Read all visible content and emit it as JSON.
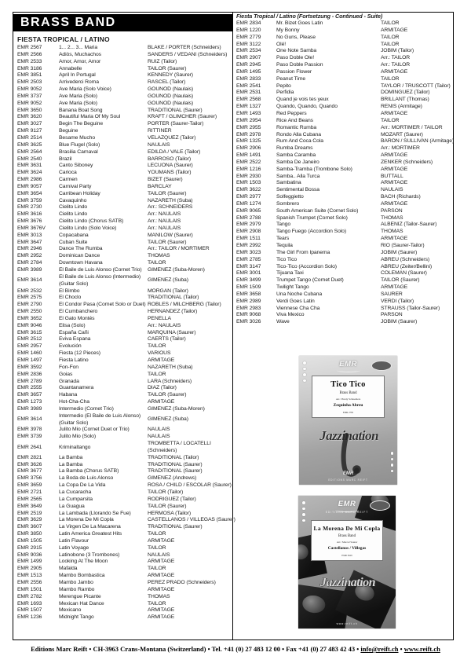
{
  "banner": "BRASS BAND",
  "section_title": "FIESTA TROPICAL / LATINO",
  "continued_heading": "Fiesta Tropical / Latino (Fortsetzung - Continued - Suite)",
  "catalog": {
    "left_rows": [
      {
        "emr": "EMR 2567",
        "title": "1... 2... 3... Maria",
        "composer": "BLAKE / PORTER (Schneiders)"
      },
      {
        "emr": "EMR 2566",
        "title": "Adiòs, Muchachos",
        "composer": "SANDERS / VEDANI (Schneiders)"
      },
      {
        "emr": "EMR 2533",
        "title": "Amor, Amor, Amor",
        "composer": "RUIZ (Tailor)"
      },
      {
        "emr": "EMR 3186",
        "title": "Annabelle",
        "composer": "TAILOR (Saurer)"
      },
      {
        "emr": "EMR 3851",
        "title": "April In Portugal",
        "composer": "KENNEDY (Saurer)"
      },
      {
        "emr": "EMR 2503",
        "title": "Arrivederci Roma",
        "composer": "RASCEL (Tailor)"
      },
      {
        "emr": "EMR 9052",
        "title": "Ave Maria (Solo Voice)",
        "composer": "GOUNOD (Naulais)"
      },
      {
        "emr": "EMR 3737",
        "title": "Ave Maria (Solo)",
        "composer": "GOUNOD (Naulais)"
      },
      {
        "emr": "EMR 9052",
        "title": "Ave Maria (Solo)",
        "composer": "GOUNOD (Naulais)"
      },
      {
        "emr": "EMR 3650",
        "title": "Banana Boat Song",
        "composer": "TRADITIONAL (Saurer)"
      },
      {
        "emr": "EMR 3620",
        "title": "Beautiful Maria Of My Soul",
        "composer": "KRAFT / GLIMCHER (Saurer)"
      },
      {
        "emr": "EMR 3027",
        "title": "Begin The Beguine",
        "composer": "PORTER (Saurer-Tailor)"
      },
      {
        "emr": "EMR 9127",
        "title": "Beguine",
        "composer": "RITTINER"
      },
      {
        "emr": "EMR 2514",
        "title": "Besame Mucho",
        "composer": "VELAZQUEZ (Tailor)"
      },
      {
        "emr": "EMR 3625",
        "title": "Blue Flugel (Solo)",
        "composer": "NAULAIS"
      },
      {
        "emr": "EMR 2564",
        "title": "Brasilia Carnaval",
        "composer": "EDILDA / VALE (Tailor)"
      },
      {
        "emr": "EMR 2540",
        "title": "Brazil",
        "composer": "BARROSO (Tailor)"
      },
      {
        "emr": "EMR 3631",
        "title": "Canto Siboney",
        "composer": "LECUONA (Saurer)"
      },
      {
        "emr": "EMR 3624",
        "title": "Carioca",
        "composer": "YOUMANS (Tailor)"
      },
      {
        "emr": "EMR 2986",
        "title": "Carmen",
        "composer": "BIZET (Saurer)"
      },
      {
        "emr": "EMR 9057",
        "title": "Carnival Party",
        "composer": "BARCLAY"
      },
      {
        "emr": "EMR 3654",
        "title": "Carribean Holiday",
        "composer": "TAILOR (Saurer)"
      },
      {
        "emr": "EMR 3759",
        "title": "Cavaquinho",
        "composer": "NAZARETH (Suba)"
      },
      {
        "emr": "EMR 2730",
        "title": "Cielito Lindo",
        "composer": "Arr.: SCHNEIDERS"
      },
      {
        "emr": "EMR 3616",
        "title": "Cielito Lindo",
        "composer": "Arr.: NAULAIS"
      },
      {
        "emr": "EMR 3676",
        "title": "Cielito Lindo (Chorus SATB)",
        "composer": "Arr.: NAULAIS"
      },
      {
        "emr": "EMR 3676V",
        "title": "Cielito Lindo (Solo Voice)",
        "composer": "Arr.: NAULAIS"
      },
      {
        "emr": "EMR 3013",
        "title": "Copacabana",
        "composer": "MANILOW (Saurer)"
      },
      {
        "emr": "EMR 3647",
        "title": "Cuban Suite",
        "composer": "TAILOR (Saurer)"
      },
      {
        "emr": "EMR 2946",
        "title": "Dance The Rumba",
        "composer": "Arr.: TAILOR / MORTIMER"
      },
      {
        "emr": "EMR 2952",
        "title": "Dominican Dance",
        "composer": "THOMAS"
      },
      {
        "emr": "EMR 2784",
        "title": "Downtown Havana",
        "composer": "TAILOR"
      },
      {
        "emr": "EMR 3989",
        "title": "El Baile de Luis Alonso (Cornet Trio)",
        "composer": "GIMENEZ (Suba-Moren)"
      },
      {
        "emr": "EMR 3614",
        "title": "El Baile de Luis Alonso (Intermedio)\n(Guitar Solo)",
        "composer": "GIMENEZ (Suba)"
      },
      {
        "emr": "EMR 2532",
        "title": "El Bimbo",
        "composer": "MORGAN (Tailor)"
      },
      {
        "emr": "EMR 2575",
        "title": "El Choclo",
        "composer": "TRADITIONAL (Tailor)"
      },
      {
        "emr": "EMR 2790",
        "title": "El Condor Pasa (Cornet Solo or Duet)",
        "composer": "ROBLES / MILCHBERG (Tailor)"
      },
      {
        "emr": "EMR 2550",
        "title": "El Cumbanchero",
        "composer": "HERNANDEZ (Tailor)"
      },
      {
        "emr": "EMR 3652",
        "title": "El Gato Montés",
        "composer": "PENELLA"
      },
      {
        "emr": "EMR 9046",
        "title": "Elisa (Solo)",
        "composer": "Arr.: NAULAIS"
      },
      {
        "emr": "EMR 3615",
        "title": "España Cañi",
        "composer": "MARQUINA (Saurer)"
      },
      {
        "emr": "EMR 2512",
        "title": "Eviva Espana",
        "composer": "CAERTS (Tailor)"
      },
      {
        "emr": "EMR 2957",
        "title": "Evolución",
        "composer": "TAILOR"
      },
      {
        "emr": "EMR 1460",
        "title": "Fiesta (12 Pieces)",
        "composer": "VARIOUS"
      },
      {
        "emr": "EMR 1497",
        "title": "Fiesta Latino",
        "composer": "ARMITAGE"
      },
      {
        "emr": "EMR 3592",
        "title": "Fon-Fon",
        "composer": "NAZARETH (Suba)"
      },
      {
        "emr": "EMR 2836",
        "title": "Goias",
        "composer": "TAILOR"
      },
      {
        "emr": "EMR 2789",
        "title": "Granada",
        "composer": "LARA (Schneiders)"
      },
      {
        "emr": "EMR 2555",
        "title": "Guantanamera",
        "composer": "DIAZ (Tailor)"
      },
      {
        "emr": "EMR 3657",
        "title": "Habana",
        "composer": "TAILOR (Saurer)"
      },
      {
        "emr": "EMR 1273",
        "title": "Hot-Cha-Cha",
        "composer": "ARMITAGE"
      },
      {
        "emr": "EMR 3989",
        "title": "Intermedio (Cornet Trio)",
        "composer": "GIMENEZ (Suba-Moren)"
      },
      {
        "emr": "EMR 3614",
        "title": "Intermedio (El Baile de Luis Alonso)\n(Guitar Solo)",
        "composer": "GIMENEZ (Suba)"
      },
      {
        "emr": "EMR 3978",
        "title": "Julito Mio (Cornet Duet or Trio)",
        "composer": "NAULAIS"
      },
      {
        "emr": "EMR 3739",
        "title": "Julito Mio (Solo)",
        "composer": "NAULAIS"
      },
      {
        "emr": "EMR 2641",
        "title": "Kriminaltango",
        "composer": "TROMBETTA / LOCATELLI\n(Schneiders)"
      },
      {
        "emr": "EMR 2821",
        "title": "La Bamba",
        "composer": "TRADITIONAL (Tailor)"
      },
      {
        "emr": "EMR 3626",
        "title": "La Bamba",
        "composer": "TRADITIONAL (Saurer)"
      },
      {
        "emr": "EMR 3677",
        "title": "La Bamba (Chorus SATB)",
        "composer": "TRADITIONAL (Saurer)"
      },
      {
        "emr": "EMR 3756",
        "title": "La Boda de Luis Alonso",
        "composer": "GIMENEZ (Andrews)"
      },
      {
        "emr": "EMR 3659",
        "title": "La Copa De La Vida",
        "composer": "ROSA / CHILD / ESCOLAR (Saurer)"
      },
      {
        "emr": "EMR 2721",
        "title": "La Cucaracha",
        "composer": "TAILOR (Tailor)"
      },
      {
        "emr": "EMR 2565",
        "title": "La Cumparsita",
        "composer": "RODRIGUEZ (Tailor)"
      },
      {
        "emr": "EMR 3649",
        "title": "La Guagua",
        "composer": "TAILOR (Saurer)"
      },
      {
        "emr": "EMR 2519",
        "title": "La Lambada (Llorando Se Fue)",
        "composer": "HERMOSA (Tailor)"
      },
      {
        "emr": "EMR 3629",
        "title": "La Morena De Mi Copla",
        "composer": "CASTELLANOS / VILLEGAS (Saurer)"
      },
      {
        "emr": "EMR 3607",
        "title": "La Virgen De La Macarena",
        "composer": "TRADITIONAL (Saurer)"
      },
      {
        "emr": "EMR 3850",
        "title": "Latin America Greatest Hits",
        "composer": "TAILOR"
      },
      {
        "emr": "EMR 1505",
        "title": "Latin Flavour",
        "composer": "ARMITAGE"
      },
      {
        "emr": "EMR 2915",
        "title": "Latin Voyage",
        "composer": "TAILOR"
      },
      {
        "emr": "EMR 9036",
        "title": "Latinobone (3 Trombones)",
        "composer": "NAULAIS"
      },
      {
        "emr": "EMR 1499",
        "title": "Looking At The Moon",
        "composer": "ARMITAGE"
      },
      {
        "emr": "EMR 2905",
        "title": "Mafalda",
        "composer": "TAILOR"
      },
      {
        "emr": "EMR 1513",
        "title": "Mambo Bombastica",
        "composer": "ARMITAGE"
      },
      {
        "emr": "EMR 2556",
        "title": "Mambo Jambo",
        "composer": "PEREZ PRADO (Schneiders)"
      },
      {
        "emr": "EMR 1501",
        "title": "Mambo Rambo",
        "composer": "ARMITAGE"
      },
      {
        "emr": "EMR 2782",
        "title": "Merengue Picante",
        "composer": "THOMAS"
      },
      {
        "emr": "EMR 1693",
        "title": "Mexican Hat Dance",
        "composer": "TAILOR"
      },
      {
        "emr": "EMR 1507",
        "title": "Mexicano",
        "composer": "ARMITAGE"
      },
      {
        "emr": "EMR 1236",
        "title": "Midnight Tango",
        "composer": "ARMITAGE"
      }
    ],
    "right_rows": [
      {
        "emr": "EMR 2834",
        "title": "Mr. Bizet Goes Latin",
        "composer": "TAILOR"
      },
      {
        "emr": "EMR 1220",
        "title": "My Bonny",
        "composer": "ARMITAGE"
      },
      {
        "emr": "EMR 2779",
        "title": "No Guns, Please",
        "composer": "TAILOR"
      },
      {
        "emr": "EMR 3122",
        "title": "Olé!",
        "composer": "TAILOR"
      },
      {
        "emr": "EMR 2534",
        "title": "One Note Samba",
        "composer": "JOBIM (Tailor)"
      },
      {
        "emr": "EMR 2907",
        "title": "Paso Doble Ole!",
        "composer": "Arr.: TAILOR"
      },
      {
        "emr": "EMR 2945",
        "title": "Paso Doble Passion",
        "composer": "Arr.: TAILOR"
      },
      {
        "emr": "EMR 1495",
        "title": "Passion Flower",
        "composer": "ARMITAGE"
      },
      {
        "emr": "EMR 2833",
        "title": "Peanut Time",
        "composer": "TAILOR"
      },
      {
        "emr": "EMR 2541",
        "title": "Pepito",
        "composer": "TAYLOR / TRUSCOTT (Tailor)"
      },
      {
        "emr": "EMR 2531",
        "title": "Perfidia",
        "composer": "DOMINGUEZ (Tailor)"
      },
      {
        "emr": "EMR 2568",
        "title": "Quand je vois tes yeux",
        "composer": "BRILLANT (Thomas)"
      },
      {
        "emr": "EMR 1327",
        "title": "Quando, Quando, Quando",
        "composer": "RENIS (Armitage)"
      },
      {
        "emr": "EMR 1493",
        "title": "Red Peppers",
        "composer": "ARMITAGE"
      },
      {
        "emr": "EMR 2954",
        "title": "Rice And Beans",
        "composer": "TAILOR"
      },
      {
        "emr": "EMR 2955",
        "title": "Romantic Rumba",
        "composer": "Arr.: MORTIMER / TAILOR"
      },
      {
        "emr": "EMR 2978",
        "title": "Rondo Alla Cubana",
        "composer": "MOZART (Saurer)"
      },
      {
        "emr": "EMR 1325",
        "title": "Rum And Coca Cola",
        "composer": "BARON / SULLIVAN (Armitage)"
      },
      {
        "emr": "EMR 2906",
        "title": "Rumba Dreams",
        "composer": "Arr.: MORTIMER"
      },
      {
        "emr": "EMR 1491",
        "title": "Samba Caramba",
        "composer": "ARMITAGE"
      },
      {
        "emr": "EMR 2522",
        "title": "Samba De Janeiro",
        "composer": "ZENKER (Schneiders)"
      },
      {
        "emr": "EMR 1216",
        "title": "Samba-Tramba (Trombone Solo)",
        "composer": "ARMITAGE"
      },
      {
        "emr": "EMR 2930",
        "title": "Samba.. Alla Turca",
        "composer": "BUTTALL"
      },
      {
        "emr": "EMR 1503",
        "title": "Sambatina",
        "composer": "ARMITAGE"
      },
      {
        "emr": "EMR 3622",
        "title": "Sentimental Bossa",
        "composer": "NAULAIS"
      },
      {
        "emr": "EMR 2977",
        "title": "Solfeggietto",
        "composer": "BACH (Richards)"
      },
      {
        "emr": "EMR 1274",
        "title": "Sombrero",
        "composer": "ARMITAGE"
      },
      {
        "emr": "EMR 9065",
        "title": "South American Suite (Cornet Solo)",
        "composer": "PARSON"
      },
      {
        "emr": "EMR 2788",
        "title": "Spanish Trumpet (Cornet Solo)",
        "composer": "THOMAS"
      },
      {
        "emr": "EMR 2979",
        "title": "Tango",
        "composer": "ALBENIZ (Tailor-Saurer)"
      },
      {
        "emr": "EMR 2908",
        "title": "Tango Fuego (Accordion Solo)",
        "composer": "THOMAS"
      },
      {
        "emr": "EMR 1511",
        "title": "Tears",
        "composer": "ARMITAGE"
      },
      {
        "emr": "EMR 2992",
        "title": "Tequila",
        "composer": "RIO (Saurer-Tailor)"
      },
      {
        "emr": "EMR 3023",
        "title": "The Girl From Ipanema",
        "composer": "JOBIM (Saurer)"
      },
      {
        "emr": "EMR 2785",
        "title": "Tico Tico",
        "composer": "ABREU (Schneiders)"
      },
      {
        "emr": "EMR 3147",
        "title": "Tico-Tico (Accordion Solo)",
        "composer": "ABREU (Zeiter/Bellini)"
      },
      {
        "emr": "EMR 3001",
        "title": "Tijuana Taxi",
        "composer": "COLEMAN (Saurer)"
      },
      {
        "emr": "EMR 3499",
        "title": "Trumpet Tango (Cornet Duet)",
        "composer": "TAILOR (Saurer)"
      },
      {
        "emr": "EMR 1509",
        "title": "Twilight Tango",
        "composer": "ARMITAGE"
      },
      {
        "emr": "EMR 3658",
        "title": "Una Noche Cubana",
        "composer": "SAURER"
      },
      {
        "emr": "EMR 2989",
        "title": "Verdi Goes Latin",
        "composer": "VERDI (Tailor)"
      },
      {
        "emr": "EMR 2983",
        "title": "Viennese Cha Cha",
        "composer": "STRAUSS (Tailor-Saurer)"
      },
      {
        "emr": "EMR 9068",
        "title": "Viva Mexico",
        "composer": "PARSON"
      },
      {
        "emr": "EMR 3026",
        "title": "Wave",
        "composer": "JOBIM (Saurer)"
      }
    ]
  },
  "covers": [
    {
      "brand": "EMR",
      "series_label": "Jazzination",
      "title": "Tico Tico",
      "subtitle": "Brass Band",
      "arranger": "Arr.: Hardy Schneiders",
      "composer": "Zequinha Abreu",
      "ref": "EMR 2785",
      "bottom_brand": "EMR",
      "bottom_text": "EDITIONS MARC REIFT"
    },
    {
      "brand": "EMR",
      "top_text": "EDITIONS MARC REIFT",
      "series_label": "Jazzination",
      "title": "La Morena De Mi Copla",
      "subtitle": "Brass Band",
      "arranger": "Arr.: Marcel Saurer",
      "composer": "Castellanos / Villegas",
      "ref": "EMR 3629",
      "bottom_text": "www.reift.ch"
    }
  ],
  "footer": {
    "separator": "•",
    "segments": [
      {
        "text": "Editions Marc Reift",
        "link": false
      },
      {
        "text": "CH-3963 Crans-Montana (Switzerland)",
        "link": false
      },
      {
        "text": "Tel. +41 (0) 27 483 12 00",
        "link": false
      },
      {
        "text": "Fax +41 (0) 27 483 42 43",
        "link": false
      },
      {
        "text": "info@reift.ch",
        "link": true
      },
      {
        "text": "www.reift.ch",
        "link": true
      }
    ]
  },
  "colors": {
    "banner_bg": "#000000",
    "banner_text": "#ffffff",
    "text": "#1c1c1c"
  }
}
